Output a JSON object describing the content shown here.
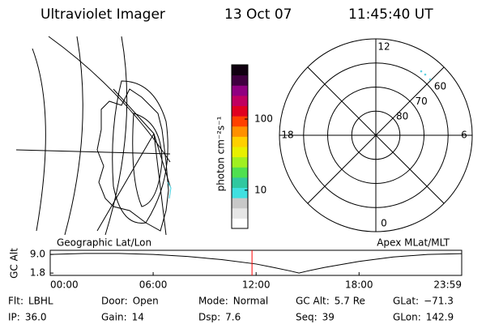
{
  "header": {
    "instrument": "Ultraviolet Imager",
    "date": "13 Oct 07",
    "time": "11:45:40 UT"
  },
  "map": {
    "title": "Geographic Lat/Lon"
  },
  "colorbar": {
    "label": "photon cm⁻²s⁻¹",
    "log": true,
    "clim": [
      2.9,
      580
    ],
    "ticks": [
      10,
      100
    ],
    "colors": [
      "#ffffff",
      "#e6e6e6",
      "#c8c8c8",
      "#40e0e0",
      "#30c8a0",
      "#50e050",
      "#a0f020",
      "#e8f000",
      "#ffd000",
      "#ff9000",
      "#ff4000",
      "#e00020",
      "#c00060",
      "#900080",
      "#400040",
      "#100010"
    ]
  },
  "polar": {
    "title": "Apex  MLat/MLT",
    "rlim": [
      90,
      50
    ],
    "ring_ticks": [
      80,
      70,
      60
    ],
    "mlt_ticks": [
      12,
      18,
      6,
      0
    ]
  },
  "altitude": {
    "ylabel": "GC Alt",
    "xlim": [
      0,
      23.983
    ],
    "ylim": [
      0.9,
      10.6
    ],
    "yticks": [
      {
        "value": 9,
        "label": "9.0"
      },
      1.8
    ],
    "xticks": [
      {
        "value": 0,
        "label": "00:00"
      },
      {
        "value": 6,
        "label": "06:00"
      },
      {
        "value": 12,
        "label": "12:00"
      },
      {
        "value": 18,
        "label": "18:00"
      },
      {
        "value": 23.983,
        "label": "23:59"
      }
    ],
    "x": [
      0,
      2,
      4,
      6,
      8,
      10,
      12,
      13,
      14,
      14.5,
      15,
      16,
      18,
      20,
      22,
      23.983
    ],
    "values": [
      9.0,
      9.4,
      9.4,
      9.0,
      8.2,
      7.0,
      5.3,
      4.0,
      2.6,
      1.8,
      2.6,
      4.0,
      6.3,
      8.0,
      9.0,
      9.3
    ],
    "current_time": 11.761,
    "current_color": "#ff0000",
    "line_color": "#000000"
  },
  "info": [
    [
      {
        "label": "Flt:",
        "value": "LBHL"
      },
      {
        "label": "Door:",
        "value": "Open"
      },
      {
        "label": "Mode:",
        "value": "Normal"
      },
      {
        "label": "GC Alt:",
        "value": "5.7 Re"
      },
      {
        "label": "GLat:",
        "value": "−71.3"
      }
    ],
    [
      {
        "label": "IP:",
        "value": "36.0"
      },
      {
        "label": "Gain:",
        "value": "14"
      },
      {
        "label": "Dsp:",
        "value": "7.6"
      },
      {
        "label": "Seq:",
        "value": "39"
      },
      {
        "label": "GLon:",
        "value": "142.9"
      }
    ]
  ]
}
